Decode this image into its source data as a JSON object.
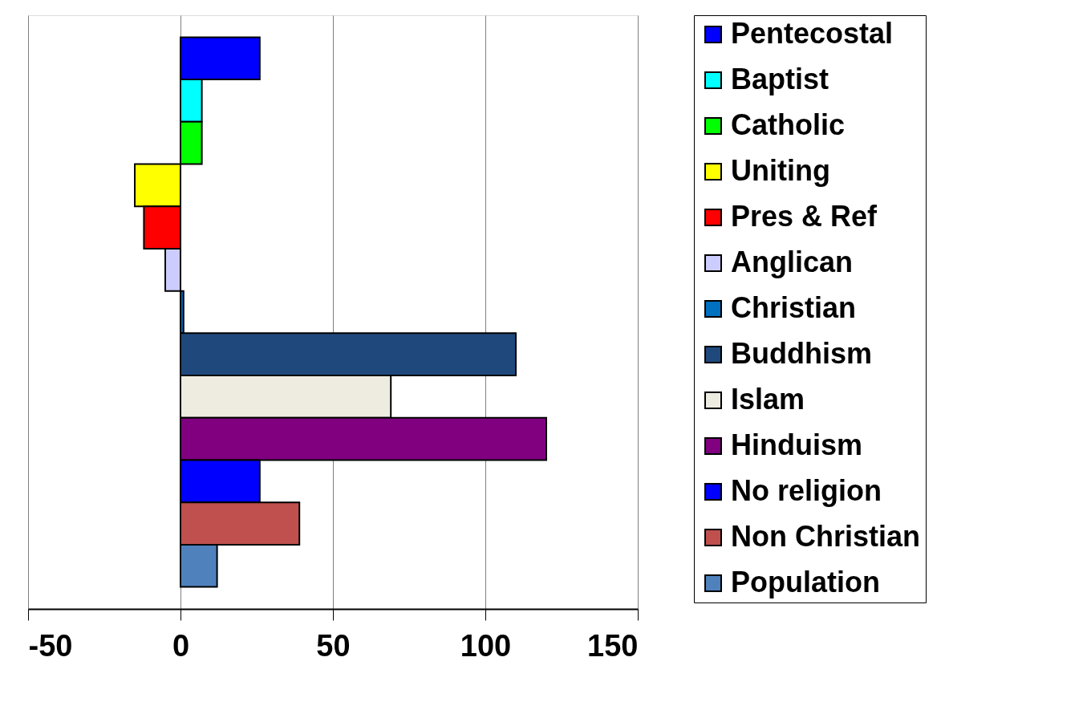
{
  "chart_data": {
    "type": "bar",
    "orientation": "horizontal",
    "categories": [
      null
    ],
    "series": [
      {
        "name": "Pentecostal",
        "color": "#0000ff",
        "values": [
          26
        ]
      },
      {
        "name": "Baptist",
        "color": "#00ffff",
        "values": [
          7
        ]
      },
      {
        "name": "Catholic",
        "color": "#00ff00",
        "values": [
          7
        ]
      },
      {
        "name": "Uniting",
        "color": "#ffff00",
        "values": [
          -15
        ]
      },
      {
        "name": "Pres & Ref",
        "color": "#ff0000",
        "values": [
          -12
        ]
      },
      {
        "name": "Anglican",
        "color": "#ccccff",
        "values": [
          -5
        ]
      },
      {
        "name": "Christian",
        "color": "#0070c0",
        "values": [
          1
        ]
      },
      {
        "name": "Buddhism",
        "color": "#1f497d",
        "values": [
          110
        ]
      },
      {
        "name": "Islam",
        "color": "#eeece1",
        "values": [
          69
        ]
      },
      {
        "name": "Hinduism",
        "color": "#800080",
        "values": [
          120
        ]
      },
      {
        "name": "No religion",
        "color": "#0000ff",
        "values": [
          26
        ]
      },
      {
        "name": "Non Christian",
        "color": "#c0504d",
        "values": [
          39
        ]
      },
      {
        "name": "Population",
        "color": "#4f81bd",
        "values": [
          12
        ]
      }
    ],
    "xlim": [
      -50,
      150
    ],
    "xticks": [
      -50,
      0,
      50,
      100,
      150
    ],
    "grid": "x",
    "legend": "right",
    "tick_labels": "x"
  }
}
